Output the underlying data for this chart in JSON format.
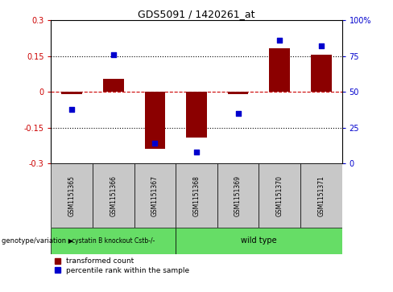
{
  "title": "GDS5091 / 1420261_at",
  "samples": [
    "GSM1151365",
    "GSM1151366",
    "GSM1151367",
    "GSM1151368",
    "GSM1151369",
    "GSM1151370",
    "GSM1151371"
  ],
  "red_bars": [
    -0.01,
    0.055,
    -0.24,
    -0.19,
    -0.01,
    0.185,
    0.155
  ],
  "blue_dots_pct": [
    38,
    76,
    14,
    8,
    35,
    86,
    82
  ],
  "ylim_left": [
    -0.3,
    0.3
  ],
  "ylim_right": [
    0,
    100
  ],
  "yticks_left": [
    -0.3,
    -0.15,
    0.0,
    0.15,
    0.3
  ],
  "yticks_right": [
    0,
    25,
    50,
    75,
    100
  ],
  "ytick_labels_left": [
    "-0.3",
    "-0.15",
    "0",
    "0.15",
    "0.3"
  ],
  "ytick_labels_right": [
    "0",
    "25",
    "50",
    "75",
    "100%"
  ],
  "hline_y": 0.0,
  "dotted_lines": [
    -0.15,
    0.15
  ],
  "genotype_labels": [
    "cystatin B knockout Cstb-/-",
    "wild type"
  ],
  "genotype_ranges": [
    [
      0,
      3
    ],
    [
      3,
      7
    ]
  ],
  "bar_color": "#8b0000",
  "dot_color": "#0000cd",
  "legend_items": [
    "transformed count",
    "percentile rank within the sample"
  ],
  "background_color": "#ffffff",
  "plot_bg": "#ffffff",
  "tick_box_color": "#c8c8c8",
  "green_color": "#66dd66",
  "genotype_variation_label": "genotype/variation",
  "bar_width": 0.5
}
